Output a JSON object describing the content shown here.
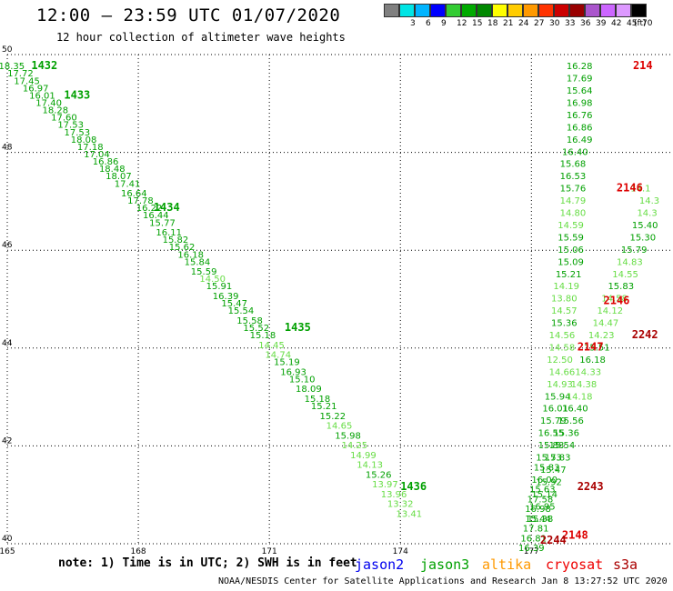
{
  "header": {
    "title": "12:00 – 23:59 UTC 01/07/2020",
    "subtitle": "12 hour collection of altimeter wave heights"
  },
  "color_scale": {
    "unit_label": "(ft)",
    "bins": [
      {
        "label": "",
        "color": "#808080"
      },
      {
        "label": "3",
        "color": "#00e5e5"
      },
      {
        "label": "6",
        "color": "#00b4ff"
      },
      {
        "label": "9",
        "color": "#0000ff"
      },
      {
        "label": "12",
        "color": "#33cc33"
      },
      {
        "label": "15",
        "color": "#00aa00"
      },
      {
        "label": "18",
        "color": "#008800"
      },
      {
        "label": "21",
        "color": "#ffff00"
      },
      {
        "label": "24",
        "color": "#ffcc00"
      },
      {
        "label": "27",
        "color": "#ff9900"
      },
      {
        "label": "30",
        "color": "#ff3300"
      },
      {
        "label": "33",
        "color": "#cc0000"
      },
      {
        "label": "36",
        "color": "#990000"
      },
      {
        "label": "39",
        "color": "#aa55cc"
      },
      {
        "label": "42",
        "color": "#cc66ff"
      },
      {
        "label": "45",
        "color": "#dd99ff"
      },
      {
        "label": "70",
        "color": "#000000"
      }
    ]
  },
  "chart_data": {
    "type": "scatter",
    "x_ticks": [
      "165",
      "168",
      "171",
      "174",
      "177"
    ],
    "y_ticks": [
      "50",
      "48",
      "46",
      "44",
      "42",
      "40"
    ],
    "xlim": [
      165,
      180.2
    ],
    "ylim": [
      40,
      50
    ],
    "grid": true,
    "series": [
      {
        "name": "jason3",
        "color": "#00a000",
        "points": [
          [
            165.1,
            49.7,
            "18.35"
          ],
          [
            165.3,
            49.55,
            "17.72"
          ],
          [
            165.45,
            49.4,
            "17.45"
          ],
          [
            165.65,
            49.25,
            "16.97"
          ],
          [
            165.8,
            49.1,
            "16.01"
          ],
          [
            165.95,
            48.95,
            "17.40"
          ],
          [
            166.1,
            48.8,
            "18.28"
          ],
          [
            166.3,
            48.65,
            "17.60"
          ],
          [
            166.45,
            48.5,
            "17.53"
          ],
          [
            166.6,
            48.35,
            "17.53"
          ],
          [
            166.75,
            48.2,
            "18.08"
          ],
          [
            166.9,
            48.05,
            "17.18"
          ],
          [
            167.05,
            47.9,
            "17.04"
          ],
          [
            167.25,
            47.75,
            "16.86"
          ],
          [
            167.4,
            47.6,
            "18.48"
          ],
          [
            167.55,
            47.45,
            "18.07"
          ],
          [
            167.75,
            47.3,
            "17.41"
          ],
          [
            167.9,
            47.1,
            "16.64"
          ],
          [
            168.05,
            46.95,
            "17.78"
          ],
          [
            168.25,
            46.8,
            "16.22"
          ],
          [
            168.4,
            46.65,
            "16.44"
          ],
          [
            168.55,
            46.5,
            "15.77"
          ],
          [
            168.7,
            46.3,
            "16.11"
          ],
          [
            168.85,
            46.15,
            "15.82"
          ],
          [
            169.0,
            46.0,
            "15.62"
          ],
          [
            169.2,
            45.85,
            "16.18"
          ],
          [
            169.35,
            45.7,
            "15.84"
          ],
          [
            169.5,
            45.5,
            "15.59"
          ],
          [
            169.7,
            45.35,
            "14.50"
          ],
          [
            169.85,
            45.2,
            "15.91"
          ],
          [
            170.0,
            45.0,
            "16.39"
          ],
          [
            170.2,
            44.85,
            "15.47"
          ],
          [
            170.35,
            44.7,
            "15.54"
          ],
          [
            170.55,
            44.5,
            "15.58"
          ],
          [
            170.7,
            44.35,
            "15.52"
          ],
          [
            170.85,
            44.2,
            "15.18"
          ],
          [
            171.05,
            44.0,
            "14.45"
          ],
          [
            171.2,
            43.8,
            "14.74"
          ],
          [
            171.4,
            43.65,
            "15.19"
          ],
          [
            171.55,
            43.45,
            "16.93"
          ],
          [
            171.75,
            43.3,
            "15.10"
          ],
          [
            171.9,
            43.1,
            "18.09"
          ],
          [
            172.1,
            42.9,
            "15.18"
          ],
          [
            172.25,
            42.75,
            "15.21"
          ],
          [
            172.45,
            42.55,
            "15.22"
          ],
          [
            172.6,
            42.35,
            "14.65"
          ],
          [
            172.8,
            42.15,
            "15.98"
          ],
          [
            172.95,
            41.95,
            "14.25"
          ],
          [
            173.15,
            41.75,
            "14.99"
          ],
          [
            173.3,
            41.55,
            "14.13"
          ],
          [
            173.5,
            41.35,
            "15.26"
          ],
          [
            173.65,
            41.15,
            "13.97"
          ],
          [
            173.85,
            40.95,
            "13.96"
          ],
          [
            174.0,
            40.75,
            "13.32"
          ],
          [
            174.2,
            40.55,
            "13.41"
          ],
          [
            178.1,
            49.7,
            "16.28"
          ],
          [
            178.1,
            49.45,
            "17.69"
          ],
          [
            178.1,
            49.2,
            "15.64"
          ],
          [
            178.1,
            48.95,
            "16.98"
          ],
          [
            178.1,
            48.7,
            "16.76"
          ],
          [
            178.1,
            48.45,
            "16.86"
          ],
          [
            178.1,
            48.2,
            "16.49"
          ],
          [
            178.0,
            47.95,
            "16.40"
          ],
          [
            177.95,
            47.7,
            "15.68"
          ],
          [
            177.95,
            47.45,
            "16.53"
          ],
          [
            177.95,
            47.2,
            "15.76"
          ],
          [
            177.95,
            46.95,
            "14.79"
          ],
          [
            177.95,
            46.7,
            "14.80"
          ],
          [
            177.9,
            46.45,
            "14.59"
          ],
          [
            177.9,
            46.2,
            "15.59"
          ],
          [
            177.9,
            45.95,
            "15.06"
          ],
          [
            177.9,
            45.7,
            "15.09"
          ],
          [
            177.85,
            45.45,
            "15.21"
          ],
          [
            177.8,
            45.2,
            "14.19"
          ],
          [
            177.75,
            44.95,
            "13.80"
          ],
          [
            177.75,
            44.7,
            "14.57"
          ],
          [
            177.75,
            44.45,
            "15.36"
          ],
          [
            177.7,
            44.2,
            "14.56"
          ],
          [
            177.7,
            43.95,
            "14.58"
          ],
          [
            177.65,
            43.7,
            "12.50"
          ],
          [
            177.7,
            43.45,
            "14.66"
          ],
          [
            177.65,
            43.2,
            "14.93"
          ],
          [
            177.6,
            42.95,
            "15.94"
          ],
          [
            177.55,
            42.7,
            "16.01"
          ],
          [
            177.5,
            42.45,
            "15.79"
          ],
          [
            177.45,
            42.2,
            "16.55"
          ],
          [
            177.45,
            41.95,
            "15.88"
          ],
          [
            177.4,
            41.7,
            "15.73"
          ],
          [
            177.35,
            41.5,
            "15.83"
          ],
          [
            177.3,
            41.25,
            "16.00"
          ],
          [
            177.25,
            41.05,
            "15.63"
          ],
          [
            177.2,
            40.85,
            "17.58"
          ],
          [
            177.15,
            40.65,
            "16.98"
          ],
          [
            177.15,
            40.45,
            "15.44"
          ],
          [
            177.1,
            40.25,
            "17.81"
          ],
          [
            177.05,
            40.05,
            "16.81"
          ],
          [
            177.0,
            39.85,
            "16.39"
          ],
          [
            179.5,
            47.2,
            "14.1"
          ],
          [
            179.7,
            46.95,
            "14.3"
          ],
          [
            179.65,
            46.7,
            "14.3"
          ],
          [
            179.6,
            46.45,
            "15.40"
          ],
          [
            179.55,
            46.2,
            "15.30"
          ],
          [
            179.35,
            45.95,
            "15.79"
          ],
          [
            179.25,
            45.7,
            "14.83"
          ],
          [
            179.15,
            45.45,
            "14.55"
          ],
          [
            179.05,
            45.2,
            "15.83"
          ],
          [
            178.9,
            44.95,
            "14.58"
          ],
          [
            178.8,
            44.7,
            "14.12"
          ],
          [
            178.7,
            44.45,
            "14.47"
          ],
          [
            178.6,
            44.2,
            "14.23"
          ],
          [
            178.5,
            43.95,
            "15.51"
          ],
          [
            178.4,
            43.7,
            "16.18"
          ],
          [
            178.3,
            43.45,
            "14.33"
          ],
          [
            178.2,
            43.2,
            "14.38"
          ],
          [
            178.1,
            42.95,
            "14.18"
          ],
          [
            178.0,
            42.7,
            "16.40"
          ],
          [
            177.9,
            42.45,
            "15.56"
          ],
          [
            177.8,
            42.2,
            "15.36"
          ],
          [
            177.7,
            41.95,
            "15.54"
          ],
          [
            177.6,
            41.7,
            "15.83"
          ],
          [
            177.5,
            41.45,
            "15.47"
          ],
          [
            177.4,
            41.2,
            "15.92"
          ],
          [
            177.3,
            40.95,
            "15.14"
          ],
          [
            177.25,
            40.7,
            "16.95"
          ],
          [
            177.2,
            40.45,
            "15.38"
          ]
        ]
      }
    ],
    "pass_labels": [
      {
        "text": "1432",
        "x": 165.85,
        "y": 49.7,
        "color": "#00a000"
      },
      {
        "text": "1433",
        "x": 166.6,
        "y": 49.1,
        "color": "#00a000"
      },
      {
        "text": "1434",
        "x": 168.65,
        "y": 46.8,
        "color": "#00a000"
      },
      {
        "text": "1435",
        "x": 171.65,
        "y": 44.35,
        "color": "#00a000"
      },
      {
        "text": "1436",
        "x": 174.3,
        "y": 41.1,
        "color": "#00a000"
      },
      {
        "text": "214",
        "x": 179.55,
        "y": 49.7,
        "color": "#dd0000"
      },
      {
        "text": "2146",
        "x": 179.25,
        "y": 47.2,
        "color": "#dd0000"
      },
      {
        "text": "2146",
        "x": 178.95,
        "y": 44.9,
        "color": "#dd0000"
      },
      {
        "text": "2147",
        "x": 178.35,
        "y": 43.95,
        "color": "#dd0000"
      },
      {
        "text": "2148",
        "x": 178.0,
        "y": 40.1,
        "color": "#dd0000"
      },
      {
        "text": "2242",
        "x": 179.6,
        "y": 44.2,
        "color": "#aa0000"
      },
      {
        "text": "2243",
        "x": 178.35,
        "y": 41.1,
        "color": "#aa0000"
      },
      {
        "text": "2244",
        "x": 177.5,
        "y": 40.0,
        "color": "#aa0000"
      }
    ]
  },
  "footer": {
    "note": "note: 1) Time is in UTC; 2) SWH is in feet",
    "satellites": [
      {
        "name": "jason2",
        "color": "#0000ee"
      },
      {
        "name": "jason3",
        "color": "#00a000"
      },
      {
        "name": "altika",
        "color": "#ff9900"
      },
      {
        "name": "cryosat",
        "color": "#ee0000"
      },
      {
        "name": "s3a",
        "color": "#aa0000"
      }
    ],
    "credit": "NOAA/NESDIS Center for Satellite Applications and Research   Jan  8 13:27:52 UTC 2020"
  }
}
